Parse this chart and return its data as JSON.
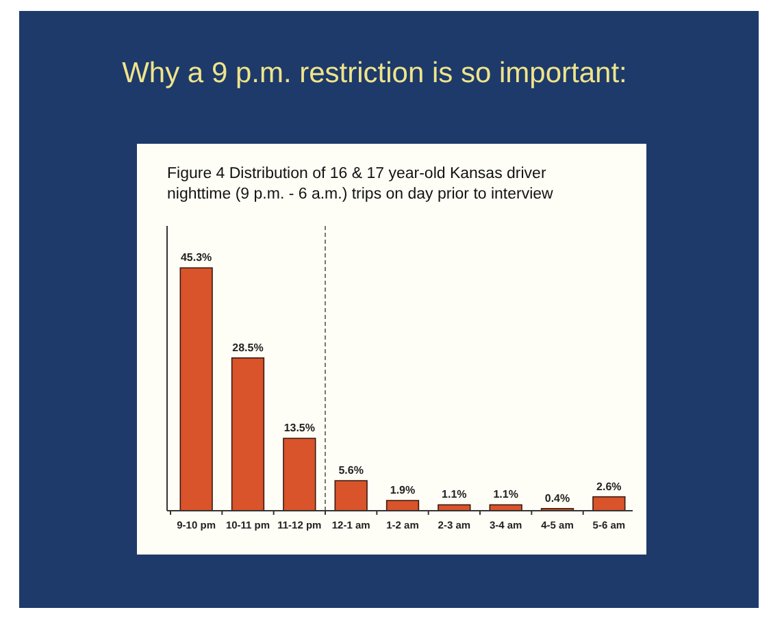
{
  "chart_data": {
    "type": "bar",
    "title": "Why a 9 p.m. restriction is so important:",
    "subtitle": "Figure 4 Distribution of 16 & 17 year-old Kansas driver nighttime (9 p.m. - 6 a.m.) trips on day prior to interview",
    "categories": [
      "9-10  pm",
      "10-11 pm",
      "11-12  pm",
      "12-1 am",
      "1-2 am",
      "2-3 am",
      "3-4 am",
      "4-5 am",
      "5-6 am"
    ],
    "values": [
      45.3,
      28.5,
      13.5,
      5.6,
      1.9,
      1.1,
      1.1,
      0.4,
      2.6
    ],
    "value_labels": [
      "45.3%",
      "28.5%",
      "13.5%",
      "5.6%",
      "1.9%",
      "1.1%",
      "1.1%",
      "0.4%",
      "2.6%"
    ],
    "color": "#d9532b",
    "tick_labels": "x",
    "grid": false
  }
}
